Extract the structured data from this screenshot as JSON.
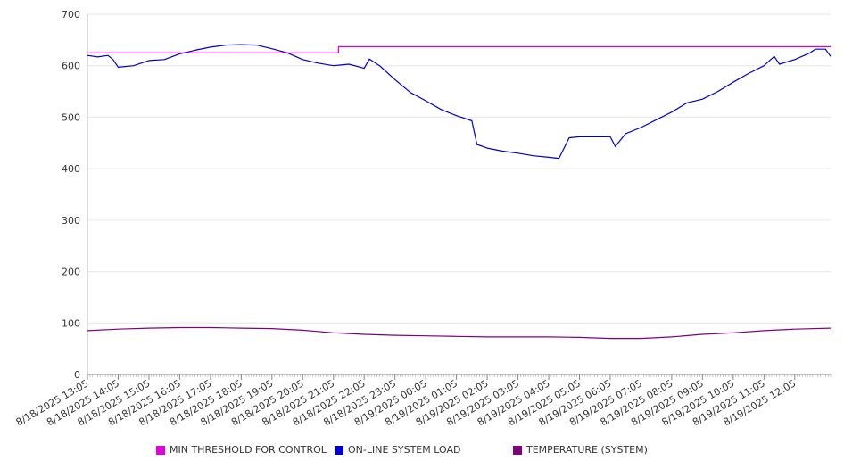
{
  "chart_data": {
    "type": "line",
    "title": "",
    "xlabel": "",
    "ylabel": "",
    "ylim": [
      0,
      700
    ],
    "yticks": [
      0,
      100,
      200,
      300,
      400,
      500,
      600,
      700
    ],
    "grid": true,
    "legend_position": "bottom",
    "x_start": "8/18/2025 13:05",
    "x_end": "8/19/2025 13:15",
    "x_tick_labels": [
      "8/18/2025 13:05",
      "8/18/2025 14:05",
      "8/18/2025 15:05",
      "8/18/2025 16:05",
      "8/18/2025 17:05",
      "8/18/2025 18:05",
      "8/18/2025 19:05",
      "8/18/2025 20:05",
      "8/18/2025 21:05",
      "8/18/2025 22:05",
      "8/18/2025 23:05",
      "8/19/2025 00:05",
      "8/19/2025 01:05",
      "8/19/2025 02:05",
      "8/19/2025 03:05",
      "8/19/2025 04:05",
      "8/19/2025 05:05",
      "8/19/2025 06:05",
      "8/19/2025 07:05",
      "8/19/2025 08:05",
      "8/19/2025 09:05",
      "8/19/2025 10:05",
      "8/19/2025 11:05",
      "8/19/2025 12:05"
    ],
    "series": [
      {
        "name": "MIN THRESHOLD FOR CONTROL",
        "color": "#e000e0",
        "step": true,
        "points": [
          [
            "8/18/2025 13:05",
            625
          ],
          [
            "8/18/2025 21:15",
            625
          ],
          [
            "8/18/2025 21:15",
            637
          ],
          [
            "8/19/2025 13:15",
            637
          ]
        ]
      },
      {
        "name": "ON-LINE SYSTEM LOAD",
        "color": "#0000cc",
        "points": [
          [
            "8/18/2025 13:05",
            620
          ],
          [
            "8/18/2025 13:25",
            617
          ],
          [
            "8/18/2025 13:45",
            620
          ],
          [
            "8/18/2025 13:55",
            612
          ],
          [
            "8/18/2025 14:05",
            597
          ],
          [
            "8/18/2025 14:35",
            600
          ],
          [
            "8/18/2025 15:05",
            610
          ],
          [
            "8/18/2025 15:35",
            612
          ],
          [
            "8/18/2025 16:05",
            623
          ],
          [
            "8/18/2025 16:35",
            630
          ],
          [
            "8/18/2025 17:05",
            636
          ],
          [
            "8/18/2025 17:35",
            640
          ],
          [
            "8/18/2025 18:05",
            641
          ],
          [
            "8/18/2025 18:35",
            640
          ],
          [
            "8/18/2025 19:05",
            633
          ],
          [
            "8/18/2025 19:35",
            625
          ],
          [
            "8/18/2025 20:05",
            612
          ],
          [
            "8/18/2025 20:35",
            605
          ],
          [
            "8/18/2025 21:05",
            600
          ],
          [
            "8/18/2025 21:35",
            603
          ],
          [
            "8/18/2025 22:05",
            595
          ],
          [
            "8/18/2025 22:15",
            613
          ],
          [
            "8/18/2025 22:35",
            600
          ],
          [
            "8/18/2025 23:05",
            573
          ],
          [
            "8/18/2025 23:35",
            548
          ],
          [
            "8/19/2025 00:05",
            532
          ],
          [
            "8/19/2025 00:35",
            515
          ],
          [
            "8/19/2025 01:05",
            503
          ],
          [
            "8/19/2025 01:35",
            493
          ],
          [
            "8/19/2025 01:45",
            447
          ],
          [
            "8/19/2025 02:05",
            440
          ],
          [
            "8/19/2025 02:35",
            434
          ],
          [
            "8/19/2025 03:05",
            430
          ],
          [
            "8/19/2025 03:35",
            425
          ],
          [
            "8/19/2025 04:05",
            422
          ],
          [
            "8/19/2025 04:25",
            420
          ],
          [
            "8/19/2025 04:45",
            460
          ],
          [
            "8/19/2025 05:05",
            462
          ],
          [
            "8/19/2025 05:35",
            462
          ],
          [
            "8/19/2025 06:05",
            462
          ],
          [
            "8/19/2025 06:15",
            443
          ],
          [
            "8/19/2025 06:35",
            468
          ],
          [
            "8/19/2025 07:05",
            480
          ],
          [
            "8/19/2025 07:35",
            495
          ],
          [
            "8/19/2025 08:05",
            510
          ],
          [
            "8/19/2025 08:35",
            528
          ],
          [
            "8/19/2025 09:05",
            535
          ],
          [
            "8/19/2025 09:35",
            550
          ],
          [
            "8/19/2025 10:05",
            568
          ],
          [
            "8/19/2025 10:35",
            585
          ],
          [
            "8/19/2025 11:05",
            600
          ],
          [
            "8/19/2025 11:25",
            618
          ],
          [
            "8/19/2025 11:35",
            603
          ],
          [
            "8/19/2025 12:05",
            612
          ],
          [
            "8/19/2025 12:35",
            625
          ],
          [
            "8/19/2025 12:45",
            632
          ],
          [
            "8/19/2025 13:05",
            632
          ],
          [
            "8/19/2025 13:15",
            618
          ]
        ]
      },
      {
        "name": "TEMPERATURE (SYSTEM)",
        "color": "#800080",
        "points": [
          [
            "8/18/2025 13:05",
            85
          ],
          [
            "8/18/2025 14:05",
            88
          ],
          [
            "8/18/2025 15:05",
            90
          ],
          [
            "8/18/2025 16:05",
            91
          ],
          [
            "8/18/2025 17:05",
            91
          ],
          [
            "8/18/2025 18:05",
            90
          ],
          [
            "8/18/2025 19:05",
            89
          ],
          [
            "8/18/2025 20:05",
            86
          ],
          [
            "8/18/2025 21:05",
            81
          ],
          [
            "8/18/2025 22:05",
            78
          ],
          [
            "8/18/2025 23:05",
            76
          ],
          [
            "8/19/2025 00:05",
            75
          ],
          [
            "8/19/2025 01:05",
            74
          ],
          [
            "8/19/2025 02:05",
            73
          ],
          [
            "8/19/2025 03:05",
            73
          ],
          [
            "8/19/2025 04:05",
            73
          ],
          [
            "8/19/2025 05:05",
            72
          ],
          [
            "8/19/2025 06:05",
            70
          ],
          [
            "8/19/2025 07:05",
            70
          ],
          [
            "8/19/2025 08:05",
            73
          ],
          [
            "8/19/2025 09:05",
            78
          ],
          [
            "8/19/2025 10:05",
            81
          ],
          [
            "8/19/2025 11:05",
            85
          ],
          [
            "8/19/2025 12:05",
            88
          ],
          [
            "8/19/2025 13:15",
            90
          ]
        ]
      }
    ]
  }
}
